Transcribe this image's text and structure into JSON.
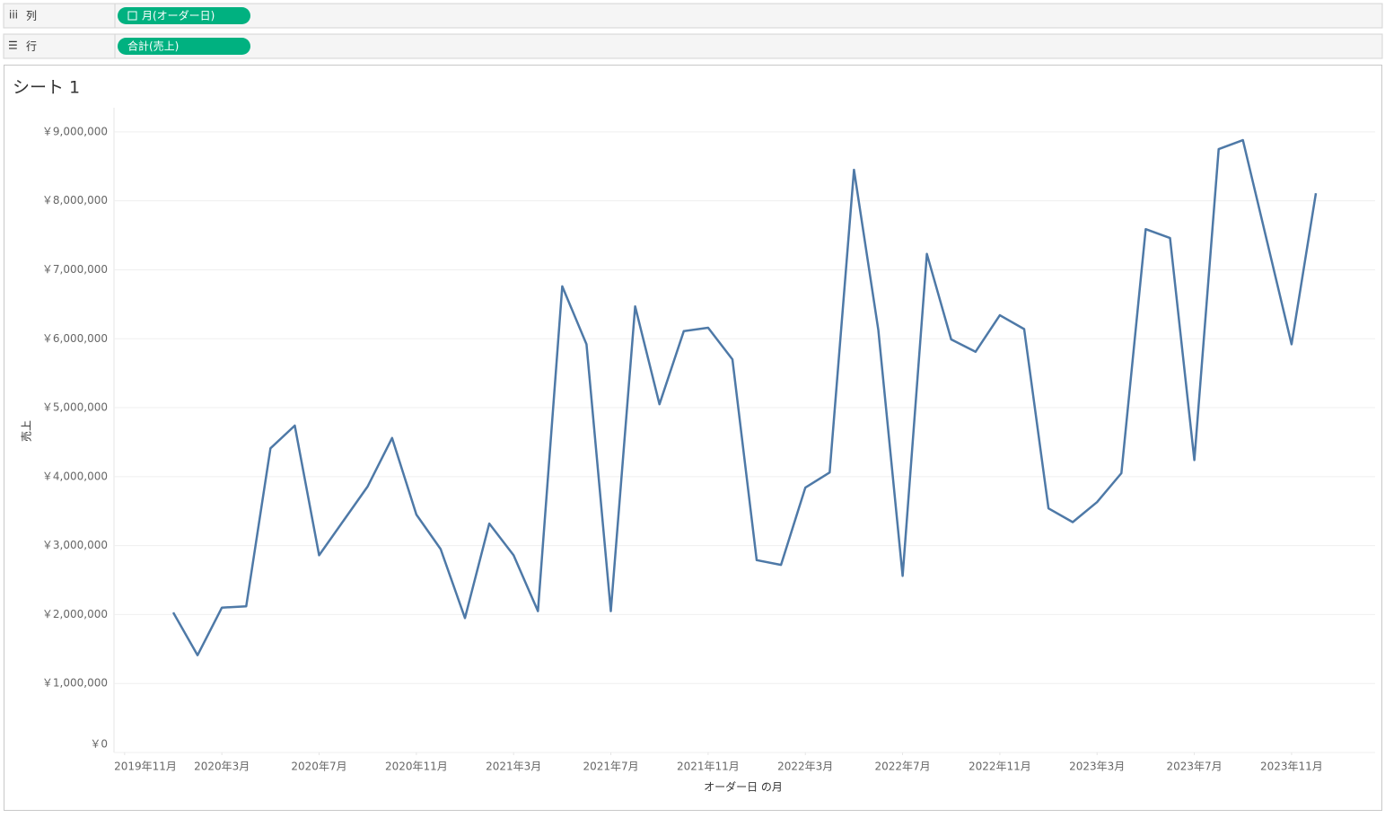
{
  "shelves": {
    "columns": {
      "label": "列",
      "pill": "月(オーダー日)"
    },
    "rows": {
      "label": "行",
      "pill": "合計(売上)"
    }
  },
  "chart_data": {
    "type": "line",
    "title": "シート 1",
    "y_label": "売上",
    "x_label": "オーダー日 の月",
    "color": "#4e79a7",
    "grid": true,
    "x": [
      "2020-01",
      "2020-02",
      "2020-03",
      "2020-04",
      "2020-05",
      "2020-06",
      "2020-07",
      "2020-08",
      "2020-09",
      "2020-10",
      "2020-11",
      "2020-12",
      "2021-01",
      "2021-02",
      "2021-03",
      "2021-04",
      "2021-05",
      "2021-06",
      "2021-07",
      "2021-08",
      "2021-09",
      "2021-10",
      "2021-11",
      "2021-12",
      "2022-01",
      "2022-02",
      "2022-03",
      "2022-04",
      "2022-05",
      "2022-06",
      "2022-07",
      "2022-08",
      "2022-09",
      "2022-10",
      "2022-11",
      "2022-12",
      "2023-01",
      "2023-02",
      "2023-03",
      "2023-04",
      "2023-05",
      "2023-06",
      "2023-07",
      "2023-08",
      "2023-09",
      "2023-10",
      "2023-11",
      "2023-12"
    ],
    "values": [
      2030000,
      1410000,
      2100000,
      2120000,
      4410000,
      4740000,
      2860000,
      3360000,
      3860000,
      4560000,
      3450000,
      2950000,
      1950000,
      3320000,
      2860000,
      2050000,
      6760000,
      5920000,
      2050000,
      6470000,
      5050000,
      6110000,
      6160000,
      5700000,
      2790000,
      2720000,
      3840000,
      4060000,
      8450000,
      6130000,
      2560000,
      7230000,
      5990000,
      5810000,
      6340000,
      6140000,
      3540000,
      3340000,
      3630000,
      4050000,
      7590000,
      7460000,
      4240000,
      8750000,
      8880000,
      7400000,
      5920000,
      8110000
    ],
    "ylim": [
      0,
      9350000
    ],
    "yticks": [
      {
        "value": 0,
        "label": "￥0"
      },
      {
        "value": 1000000,
        "label": "￥1,000,000"
      },
      {
        "value": 2000000,
        "label": "￥2,000,000"
      },
      {
        "value": 3000000,
        "label": "￥3,000,000"
      },
      {
        "value": 4000000,
        "label": "￥4,000,000"
      },
      {
        "value": 5000000,
        "label": "￥5,000,000"
      },
      {
        "value": 6000000,
        "label": "￥6,000,000"
      },
      {
        "value": 7000000,
        "label": "￥7,000,000"
      },
      {
        "value": 8000000,
        "label": "￥8,000,000"
      },
      {
        "value": 9000000,
        "label": "￥9,000,000"
      }
    ],
    "xticks": [
      {
        "value": "2019-11",
        "label": "2019年11月"
      },
      {
        "value": "2020-03",
        "label": "2020年3月"
      },
      {
        "value": "2020-07",
        "label": "2020年7月"
      },
      {
        "value": "2020-11",
        "label": "2020年11月"
      },
      {
        "value": "2021-03",
        "label": "2021年3月"
      },
      {
        "value": "2021-07",
        "label": "2021年7月"
      },
      {
        "value": "2021-11",
        "label": "2021年11月"
      },
      {
        "value": "2022-03",
        "label": "2022年3月"
      },
      {
        "value": "2022-07",
        "label": "2022年7月"
      },
      {
        "value": "2022-11",
        "label": "2022年11月"
      },
      {
        "value": "2023-03",
        "label": "2023年3月"
      },
      {
        "value": "2023-07",
        "label": "2023年7月"
      },
      {
        "value": "2023-11",
        "label": "2023年11月"
      }
    ]
  }
}
